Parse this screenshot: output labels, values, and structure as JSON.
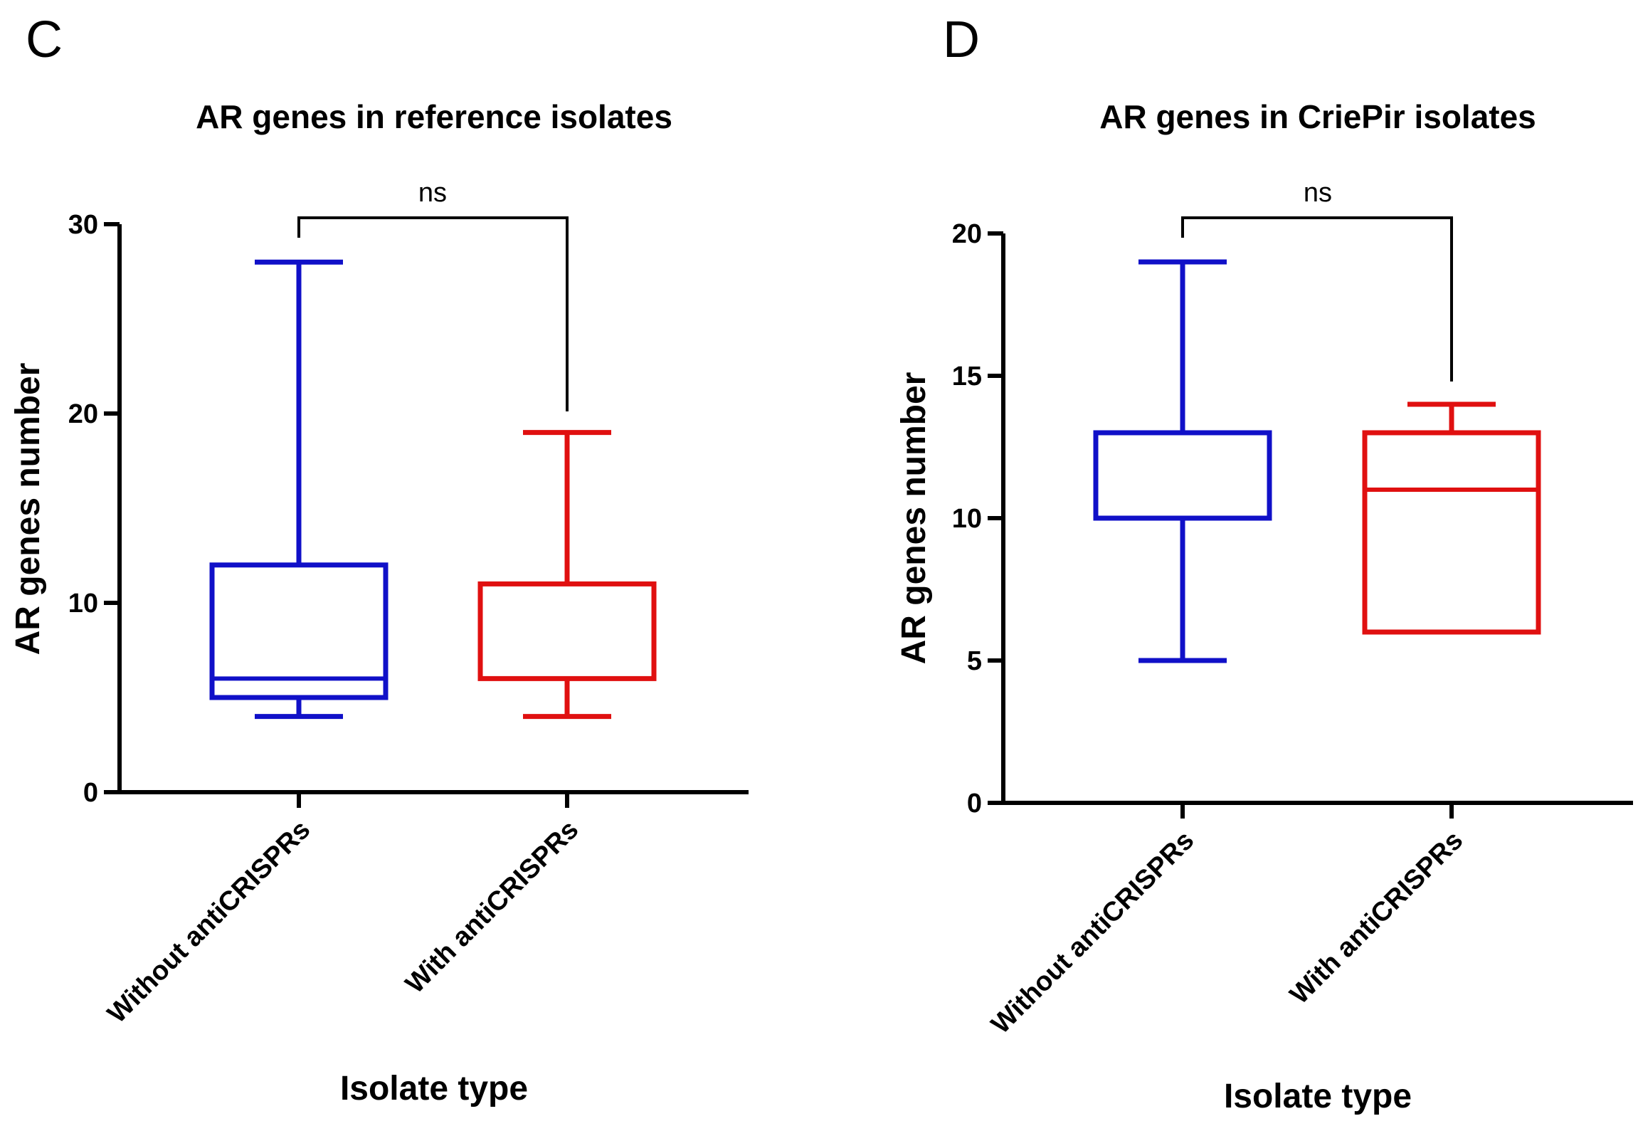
{
  "chart_data": [
    {
      "type": "box",
      "panel_label": "C",
      "title": "AR genes in reference isolates",
      "xlabel": "Isolate type",
      "ylabel": "AR genes number",
      "categories": [
        "Without antiCRISPRs",
        "With antiCRISPRs"
      ],
      "ylim": [
        0,
        30
      ],
      "yticks": [
        0,
        10,
        20,
        30
      ],
      "series": [
        {
          "category": "Without antiCRISPRs",
          "min": 4,
          "q1": 5,
          "median": 6,
          "q3": 12,
          "max": 28,
          "color": "#1010c8"
        },
        {
          "category": "With antiCRISPRs",
          "min": 4,
          "q1": 6,
          "median": 6,
          "q3": 11,
          "max": 19,
          "color": "#e01010"
        }
      ],
      "significance": {
        "label": "ns",
        "between": [
          "Without antiCRISPRs",
          "With antiCRISPRs"
        ]
      },
      "grid": false
    },
    {
      "type": "box",
      "panel_label": "D",
      "title": "AR genes in CriePir isolates",
      "xlabel": "Isolate type",
      "ylabel": "AR genes number",
      "categories": [
        "Without antiCRISPRs",
        "With antiCRISPRs"
      ],
      "ylim": [
        0,
        20
      ],
      "yticks": [
        0,
        5,
        10,
        15,
        20
      ],
      "series": [
        {
          "category": "Without antiCRISPRs",
          "min": 5,
          "q1": 10,
          "median": 10,
          "q3": 13,
          "max": 19,
          "color": "#1010c8"
        },
        {
          "category": "With antiCRISPRs",
          "min": 6,
          "q1": 6,
          "median": 11,
          "q3": 13,
          "max": 14,
          "color": "#e01010"
        }
      ],
      "significance": {
        "label": "ns",
        "between": [
          "Without antiCRISPRs",
          "With antiCRISPRs"
        ]
      },
      "grid": false
    }
  ]
}
